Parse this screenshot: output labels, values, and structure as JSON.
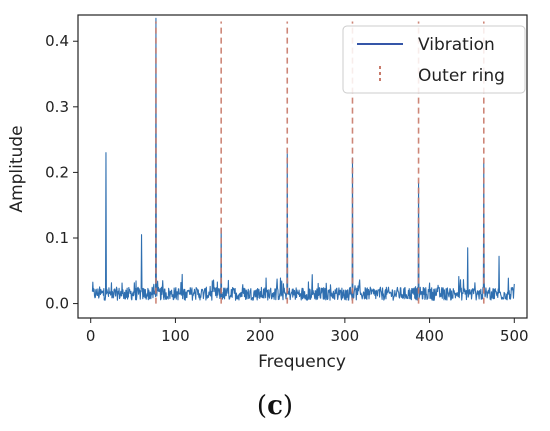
{
  "chart_data": {
    "type": "line",
    "xlabel": "Frequency",
    "ylabel": "Amplitude",
    "xlim": [
      -15,
      515
    ],
    "ylim": [
      -0.022,
      0.44
    ],
    "xticks": [
      0,
      100,
      200,
      300,
      400,
      500
    ],
    "yticks": [
      0.0,
      0.1,
      0.2,
      0.3,
      0.4
    ],
    "ytick_labels": [
      "0.0",
      "0.1",
      "0.2",
      "0.3",
      "0.4"
    ],
    "grid": false,
    "legend_position": "top-right",
    "series": [
      {
        "name": "Vibration",
        "color": "#3556a8",
        "noise_floor": 0.015,
        "x_range": [
          2,
          500
        ],
        "peaks": [
          {
            "x": 18,
            "y": 0.23
          },
          {
            "x": 60,
            "y": 0.105
          },
          {
            "x": 77,
            "y": 0.435
          },
          {
            "x": 154,
            "y": 0.115
          },
          {
            "x": 232,
            "y": 0.228
          },
          {
            "x": 309,
            "y": 0.222
          },
          {
            "x": 387,
            "y": 0.184
          },
          {
            "x": 445,
            "y": 0.085
          },
          {
            "x": 464,
            "y": 0.214
          },
          {
            "x": 482,
            "y": 0.072
          }
        ]
      },
      {
        "name": "Outer ring",
        "color": "#c87a6a",
        "style": "dashed-vertical",
        "x": [
          77,
          154,
          232,
          309,
          387,
          464
        ],
        "y_top": 0.43
      }
    ]
  },
  "caption": "(c)"
}
